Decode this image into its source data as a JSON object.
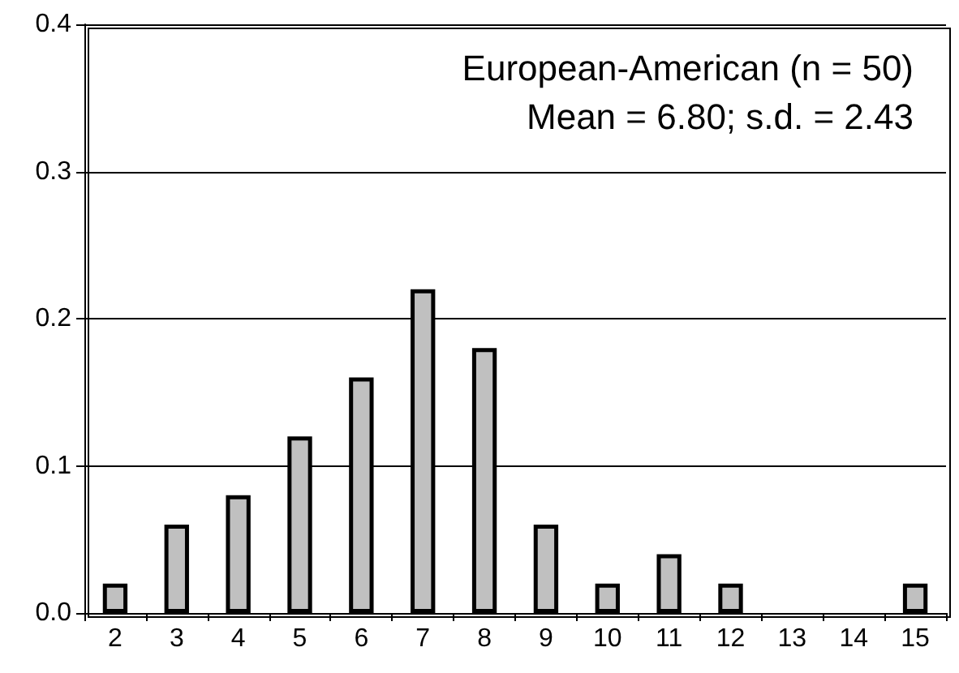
{
  "chart_data": {
    "type": "bar",
    "categories": [
      "2",
      "3",
      "4",
      "5",
      "6",
      "7",
      "8",
      "9",
      "10",
      "11",
      "12",
      "13",
      "14",
      "15"
    ],
    "values": [
      0.02,
      0.06,
      0.08,
      0.12,
      0.16,
      0.22,
      0.18,
      0.06,
      0.02,
      0.04,
      0.02,
      0,
      0,
      0.02
    ],
    "color": "#c0c0c0",
    "ylim": [
      0,
      0.4
    ],
    "yticks": [
      {
        "value": 0,
        "label": "0.0"
      },
      0.1,
      0.2,
      0.3,
      0.4
    ],
    "grid": "y",
    "annotations": [
      "European-American (n = 50)",
      "Mean = 6.80; s.d. = 2.43"
    ]
  }
}
